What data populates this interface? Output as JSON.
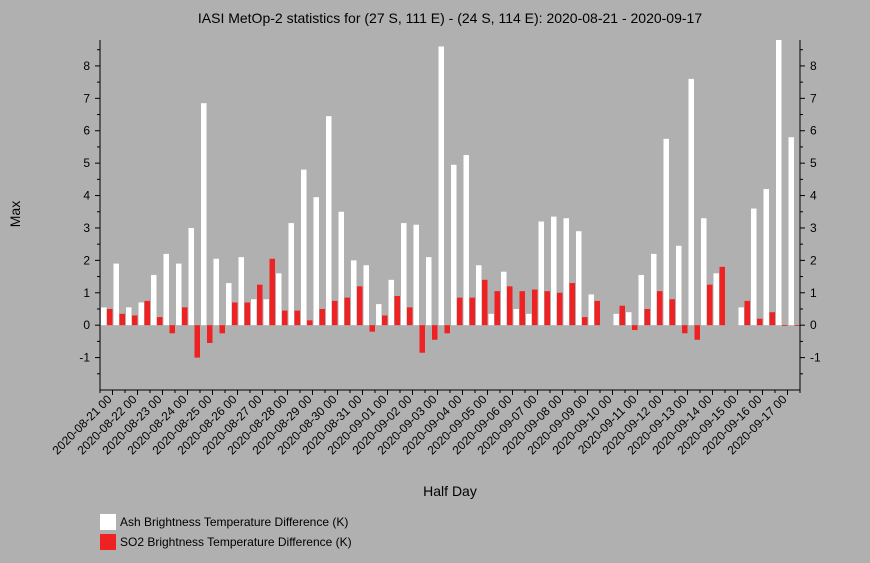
{
  "chart_data": {
    "type": "bar",
    "title": "IASI MetOp-2 statistics for (27 S, 111 E) - (24 S, 114 E): 2020-08-21 - 2020-09-17",
    "xlabel": "Half Day",
    "ylabel": "Max",
    "ylim": [
      -2,
      8.8
    ],
    "yticks": [
      -1,
      0,
      1,
      2,
      3,
      4,
      5,
      6,
      7,
      8
    ],
    "grid": false,
    "legend_position": "bottom-left",
    "categories": [
      "2020-08-21 00",
      "2020-08-21 12",
      "2020-08-22 00",
      "2020-08-22 12",
      "2020-08-23 00",
      "2020-08-23 12",
      "2020-08-24 00",
      "2020-08-24 12",
      "2020-08-25 00",
      "2020-08-25 12",
      "2020-08-26 00",
      "2020-08-26 12",
      "2020-08-27 00",
      "2020-08-27 12",
      "2020-08-28 00",
      "2020-08-28 12",
      "2020-08-29 00",
      "2020-08-29 12",
      "2020-08-30 00",
      "2020-08-30 12",
      "2020-08-31 00",
      "2020-08-31 12",
      "2020-09-01 00",
      "2020-09-01 12",
      "2020-09-02 00",
      "2020-09-02 12",
      "2020-09-03 00",
      "2020-09-03 12",
      "2020-09-04 00",
      "2020-09-04 12",
      "2020-09-05 00",
      "2020-09-05 12",
      "2020-09-06 00",
      "2020-09-06 12",
      "2020-09-07 00",
      "2020-09-07 12",
      "2020-09-08 00",
      "2020-09-08 12",
      "2020-09-09 00",
      "2020-09-09 12",
      "2020-09-10 00",
      "2020-09-10 12",
      "2020-09-11 00",
      "2020-09-11 12",
      "2020-09-12 00",
      "2020-09-12 12",
      "2020-09-13 00",
      "2020-09-13 12",
      "2020-09-14 00",
      "2020-09-14 12",
      "2020-09-15 00",
      "2020-09-15 12",
      "2020-09-16 00",
      "2020-09-16 12",
      "2020-09-17 00",
      "2020-09-17 12"
    ],
    "tick_labels": [
      "2020-08-21 00",
      "2020-08-22 00",
      "2020-08-23 00",
      "2020-08-24 00",
      "2020-08-25 00",
      "2020-08-26 00",
      "2020-08-27 00",
      "2020-08-28 00",
      "2020-08-29 00",
      "2020-08-30 00",
      "2020-08-31 00",
      "2020-09-01 00",
      "2020-09-02 00",
      "2020-09-03 00",
      "2020-09-04 00",
      "2020-09-05 00",
      "2020-09-06 00",
      "2020-09-07 00",
      "2020-09-08 00",
      "2020-09-09 00",
      "2020-09-10 00",
      "2020-09-11 00",
      "2020-09-12 00",
      "2020-09-13 00",
      "2020-09-14 00",
      "2020-09-15 00",
      "2020-09-16 00",
      "2020-09-17 00"
    ],
    "series": [
      {
        "name": "Ash Brightness Temperature Difference (K)",
        "color": "#ffffff",
        "values": [
          0.55,
          1.9,
          0.55,
          0.7,
          1.55,
          2.2,
          1.9,
          3.0,
          6.85,
          2.05,
          1.3,
          2.1,
          0.8,
          0.8,
          1.6,
          3.15,
          4.8,
          3.95,
          6.45,
          3.5,
          2.0,
          1.85,
          0.65,
          1.4,
          3.15,
          3.1,
          2.1,
          8.6,
          4.95,
          5.25,
          1.85,
          0.35,
          1.65,
          0.5,
          0.35,
          3.2,
          3.35,
          3.3,
          2.9,
          0.95,
          null,
          0.35,
          0.4,
          1.55,
          2.2,
          5.75,
          2.45,
          7.6,
          3.3,
          1.6,
          null,
          0.55,
          3.6,
          4.2,
          8.8,
          5.8
        ]
      },
      {
        "name": "SO2 Brightness Temperature Difference (K)",
        "color": "#ee2222",
        "values": [
          0.5,
          0.35,
          0.3,
          0.75,
          0.25,
          -0.25,
          0.55,
          -1.0,
          -0.55,
          -0.25,
          0.7,
          0.7,
          1.25,
          2.05,
          0.45,
          0.45,
          0.15,
          0.5,
          0.75,
          0.85,
          1.2,
          -0.2,
          0.3,
          0.9,
          0.55,
          -0.85,
          -0.45,
          -0.25,
          0.85,
          0.85,
          1.4,
          1.05,
          1.2,
          1.05,
          1.1,
          1.05,
          1.0,
          1.3,
          0.25,
          0.75,
          null,
          0.6,
          -0.15,
          0.5,
          1.05,
          0.8,
          -0.25,
          -0.45,
          1.25,
          1.8,
          null,
          0.75,
          0.2,
          0.4,
          0.0,
          0.0
        ]
      }
    ]
  }
}
